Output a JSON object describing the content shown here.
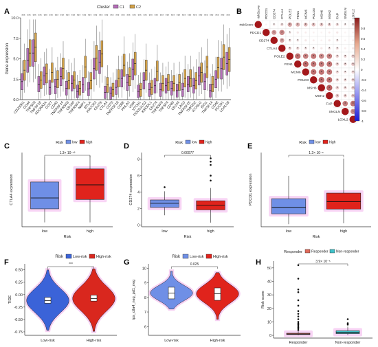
{
  "colors": {
    "c1": "#b56eb8",
    "c2": "#d3a24a",
    "low": "#6f8fe6",
    "high": "#e0231c",
    "lowrisk": "#3b63d8",
    "highrisk": "#d9271e",
    "glow": "#f3b3ec",
    "responder": "#e06a5a",
    "nonresponder": "#3fc1c9"
  },
  "chart_data": [
    {
      "panel": "A",
      "type": "box",
      "legend_title": "Cluster",
      "legend": [
        "C1",
        "C2"
      ],
      "ylabel": "Gene expression",
      "ylim": [
        0,
        10
      ],
      "yticks": [
        "0.0",
        "2.5",
        "5.0",
        "7.5",
        "10.0"
      ],
      "stars": "***",
      "categories": [
        "CD200R1",
        "CD44",
        "TNFSF9",
        "TNFSF18",
        "ADORA2A",
        "CD27",
        "CD40",
        "TNFRSF14",
        "TNFRSF8",
        "CD160",
        "TNFRSF4",
        "NRP1",
        "BTLA",
        "HAVCR2",
        "CD276",
        "CTLA4",
        "CD70",
        "TNFRSF18",
        "CD86",
        "HHLA2",
        "VSIR",
        "VTCN1",
        "PDCD1LG2",
        "KIR3DL1",
        "CD274",
        "TNFRSF9",
        "TNFSF4",
        "CD80",
        "CD244",
        "LAG3",
        "TNFRSF25",
        "TMIGD2",
        "ICOSLG",
        "IDO1",
        "TNFSF14",
        "CD48",
        "PDCD1",
        "LGALS9"
      ],
      "series": [
        {
          "name": "C1",
          "medians": [
            2.2,
            4.8,
            5.7,
            1.9,
            2.9,
            1.5,
            1.6,
            2.8,
            1.4,
            2.0,
            1.0,
            1.8,
            1.3,
            3.8,
            4.6,
            0.9,
            0.8,
            1.5,
            2.6,
            2.1,
            3.7,
            1.0,
            2.3,
            1.2,
            1.7,
            1.2,
            1.7,
            1.4,
            1.1,
            1.2,
            1.9,
            1.7,
            2.9,
            2.2,
            1.1,
            2.5,
            3.8,
            4.4
          ]
        },
        {
          "name": "C2",
          "medians": [
            3.6,
            5.7,
            6.4,
            2.4,
            3.2,
            3.3,
            2.5,
            3.8,
            2.3,
            2.4,
            1.4,
            4.0,
            2.3,
            5.1,
            5.6,
            1.8,
            1.2,
            2.6,
            4.2,
            2.8,
            4.4,
            1.2,
            3.6,
            1.5,
            3.5,
            2.0,
            2.1,
            2.0,
            2.1,
            2.6,
            2.6,
            2.3,
            3.3,
            4.0,
            1.9,
            3.9,
            5.2,
            4.9
          ]
        }
      ]
    },
    {
      "panel": "B",
      "type": "heatmap",
      "rows": [
        "riskScore",
        "PDCD1",
        "CD274",
        "CTLA4",
        "POLE2",
        "FEN1",
        "MCM6",
        "POLD3",
        "MSH6",
        "MSH2",
        "FAP",
        "SNGLN",
        "LOXL2"
      ],
      "columns": [
        "riskScore",
        "PDCD1",
        "CD274",
        "CTLA4",
        "POLE2",
        "FEN1",
        "MCM6",
        "POLD3",
        "MSH6",
        "MSH2",
        "FAP",
        "SNGLN",
        "LOXL2"
      ],
      "values": [
        [
          1.0,
          0.05,
          0.12,
          0.18,
          0.38,
          0.34,
          0.3,
          0.28,
          0.26,
          0.22,
          0.18,
          0.12,
          0.15
        ],
        [
          0.05,
          1.0,
          0.45,
          0.52,
          0.12,
          0.1,
          0.08,
          0.06,
          0.05,
          0.08,
          0.1,
          0.05,
          0.06
        ],
        [
          0.12,
          0.45,
          1.0,
          0.4,
          0.15,
          0.12,
          0.1,
          0.08,
          0.06,
          0.1,
          0.12,
          0.06,
          0.08
        ],
        [
          0.18,
          0.52,
          0.4,
          1.0,
          0.2,
          0.18,
          0.15,
          0.12,
          0.1,
          0.14,
          0.15,
          0.08,
          0.1
        ],
        [
          0.38,
          0.12,
          0.15,
          0.2,
          1.0,
          0.62,
          0.55,
          0.58,
          0.52,
          0.55,
          0.2,
          0.18,
          0.22
        ],
        [
          0.34,
          0.1,
          0.12,
          0.18,
          0.62,
          1.0,
          0.65,
          0.6,
          0.58,
          0.6,
          0.22,
          0.2,
          0.25
        ],
        [
          0.3,
          0.08,
          0.1,
          0.15,
          0.55,
          0.65,
          1.0,
          0.62,
          0.6,
          0.58,
          0.18,
          0.15,
          0.2
        ],
        [
          0.28,
          0.06,
          0.08,
          0.12,
          0.58,
          0.6,
          0.62,
          1.0,
          0.64,
          0.62,
          0.2,
          0.18,
          0.22
        ],
        [
          0.26,
          0.05,
          0.06,
          0.1,
          0.52,
          0.58,
          0.6,
          0.64,
          1.0,
          0.66,
          0.22,
          0.2,
          0.24
        ],
        [
          0.22,
          0.08,
          0.1,
          0.14,
          0.55,
          0.6,
          0.58,
          0.62,
          0.66,
          1.0,
          0.25,
          0.22,
          0.26
        ],
        [
          0.18,
          0.1,
          0.12,
          0.15,
          0.2,
          0.22,
          0.18,
          0.2,
          0.22,
          0.25,
          1.0,
          0.55,
          0.6
        ],
        [
          0.12,
          0.05,
          0.06,
          0.08,
          0.18,
          0.2,
          0.15,
          0.18,
          0.2,
          0.22,
          0.55,
          1.0,
          0.5
        ],
        [
          0.15,
          0.06,
          0.08,
          0.1,
          0.22,
          0.25,
          0.2,
          0.22,
          0.24,
          0.26,
          0.6,
          0.5,
          1.0
        ]
      ],
      "scale_ticks": [
        "0.8",
        "0.6",
        "0.4",
        "0.2",
        "0",
        "-0.2",
        "-0.4",
        "-0.6",
        "-0.8",
        "-1"
      ],
      "scale_range": [
        -1,
        1
      ],
      "star": "*"
    },
    {
      "panel": "C",
      "type": "box",
      "legend_title": "Risk",
      "legend": [
        "low",
        "high"
      ],
      "categories": [
        "low",
        "high"
      ],
      "xlabel": "Risk",
      "ylabel": "CTLA4 expression",
      "pvalue": "1.3× 10⁻¹²",
      "ylim": [
        -0.2,
        3.2
      ],
      "boxes": [
        {
          "min": 0.0,
          "q1": 0.62,
          "median": 1.12,
          "q3": 1.85,
          "max": 3.0
        },
        {
          "min": 0.0,
          "q1": 1.05,
          "median": 1.72,
          "q3": 2.45,
          "max": 3.05
        }
      ]
    },
    {
      "panel": "D",
      "type": "box",
      "legend_title": "Risk",
      "legend": [
        "low",
        "high"
      ],
      "categories": [
        "low",
        "high"
      ],
      "xlabel": "Risk",
      "ylabel": "CD274 expression",
      "pvalue": "0.00077",
      "ylim": [
        -0.2,
        8.8
      ],
      "yticks": [
        0,
        2,
        4,
        6,
        8
      ],
      "boxes": [
        {
          "min": 1.2,
          "q1": 2.15,
          "median": 2.65,
          "q3": 3.05,
          "max": 4.1,
          "outliers": [
            4.6
          ]
        },
        {
          "min": 0.3,
          "q1": 1.85,
          "median": 2.4,
          "q3": 2.95,
          "max": 4.5,
          "outliers": [
            5.4,
            6.0,
            7.3,
            7.7,
            8.1
          ]
        }
      ]
    },
    {
      "panel": "E",
      "type": "box",
      "legend_title": "Risk",
      "legend": [
        "low",
        "high"
      ],
      "categories": [
        "low",
        "high"
      ],
      "xlabel": "Risk",
      "ylabel": "PDCD1 expression",
      "pvalue": "1.2× 10⁻⁶",
      "ylim": [
        -0.3,
        8.3
      ],
      "boxes": [
        {
          "min": 0.0,
          "q1": 1.2,
          "median": 1.95,
          "q3": 2.95,
          "max": 5.6
        },
        {
          "min": 0.1,
          "q1": 1.75,
          "median": 2.6,
          "q3": 3.6,
          "max": 7.6
        }
      ]
    },
    {
      "panel": "F",
      "type": "violin",
      "legend_title": "Risk",
      "legend": [
        "Low-risk",
        "High-risk"
      ],
      "categories": [
        "Low-risk",
        "High-risk"
      ],
      "ylabel": "TIDE",
      "ylim": [
        -0.82,
        0.62
      ],
      "yticks": [
        "-0.75",
        "-0.50",
        "-0.25",
        "0.00",
        "0.25",
        "0.50"
      ],
      "pvalue": "***",
      "boxes": [
        {
          "q1": -0.175,
          "median": -0.12,
          "q3": -0.055,
          "min": -0.72,
          "max": 0.5
        },
        {
          "q1": -0.13,
          "median": -0.08,
          "q3": -0.01,
          "min": -0.74,
          "max": 0.52
        }
      ]
    },
    {
      "panel": "G",
      "type": "violin",
      "legend_title": "Risk",
      "legend": [
        "Low-risk",
        "High-risk"
      ],
      "categories": [
        "Low-risk",
        "High-risk"
      ],
      "ylabel": "ips_ctla4_neg_pd1_neg",
      "ylim": [
        5.4,
        10.3
      ],
      "yticks": [
        6,
        7,
        8,
        9,
        10
      ],
      "pvalue": "0.025",
      "boxes": [
        {
          "q1": 7.9,
          "median": 8.3,
          "q3": 8.7,
          "min": 7.2,
          "max": 9.8
        },
        {
          "q1": 7.8,
          "median": 8.25,
          "q3": 8.65,
          "min": 6.5,
          "max": 9.7
        }
      ]
    },
    {
      "panel": "H",
      "type": "box",
      "legend_title": "Responder",
      "legend": [
        "Responder",
        "Non-responder"
      ],
      "categories": [
        "Responder",
        "Non-responder"
      ],
      "ylabel": "Risk score",
      "ylim": [
        -2,
        55
      ],
      "yticks": [
        0,
        10,
        20,
        30,
        40,
        50
      ],
      "pvalue": "3.9× 10⁻⁵",
      "boxes": [
        {
          "min": 0.1,
          "q1": 0.6,
          "median": 1.0,
          "q3": 1.6,
          "max": 3.4,
          "outliers": [
            4,
            5,
            6,
            7,
            8,
            9,
            10,
            12,
            14,
            16,
            18,
            22,
            26,
            32,
            34,
            42,
            52
          ]
        },
        {
          "min": 0.3,
          "q1": 1.3,
          "median": 2.2,
          "q3": 3.4,
          "max": 6.5,
          "outliers": [
            8,
            9,
            12
          ]
        }
      ]
    }
  ],
  "panel_labels": [
    "A",
    "B",
    "C",
    "D",
    "E",
    "F",
    "G",
    "H"
  ]
}
